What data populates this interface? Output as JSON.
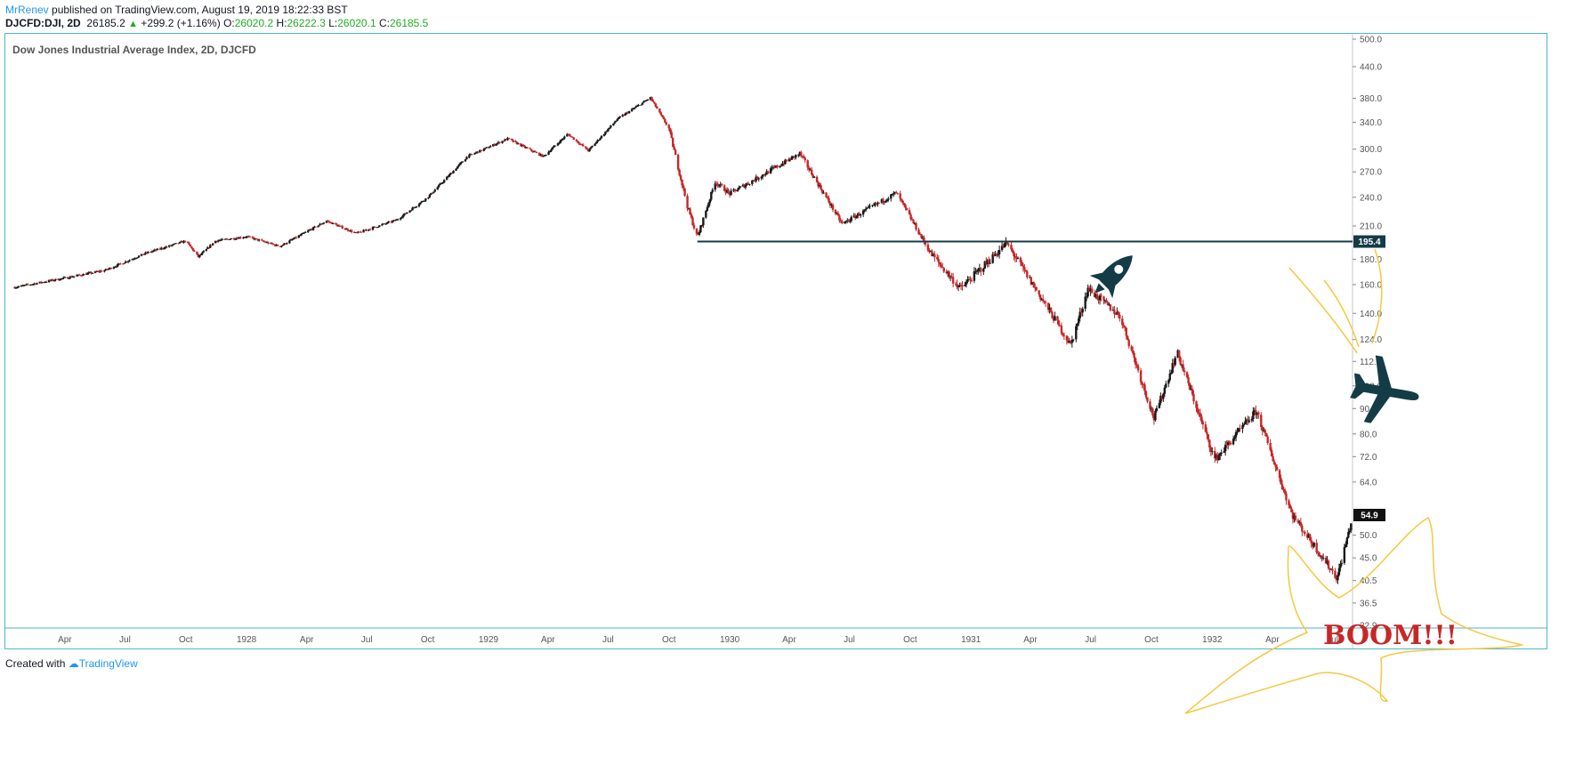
{
  "header": {
    "author": "MrRenev",
    "published_text": "published on TradingView.com, August 19, 2019 18:22:33 BST",
    "symbol": "DJCFD:DJI, 2D",
    "last": "26185.2",
    "change": "+299.2 (+1.16%)",
    "o_label": "O:",
    "o_value": "26020.2",
    "h_label": "H:",
    "h_value": "26222.3",
    "l_label": "L:",
    "l_value": "26020.1",
    "c_label": "C:",
    "c_value": "26185.5"
  },
  "footer": {
    "created_with": "Created with",
    "brand": "TradingView"
  },
  "colors": {
    "up": "#1a1a1a",
    "down": "#c62828",
    "line": "#143c46",
    "frame": "#4db6c9",
    "annotation": "#f5c842",
    "boom": "#c62828",
    "icon": "#143c46"
  },
  "icons": [
    "rocket-icon",
    "airplane-icon"
  ],
  "chart_data": {
    "type": "candlestick",
    "title": "Dow Jones Industrial Average Index, 2D, DJCFD",
    "y_scale": "log",
    "ylim": [
      32.9,
      500
    ],
    "y_ticks": [
      32.9,
      36.5,
      40.5,
      45.0,
      50.0,
      54.9,
      64.0,
      72.0,
      80.0,
      90.0,
      100.0,
      112.0,
      124.0,
      140.0,
      160.0,
      180.0,
      195.4,
      210.0,
      240.0,
      270.0,
      300.0,
      340.0,
      380.0,
      440.0,
      500.0
    ],
    "y_tick_labels": [
      "32.9",
      "36.5",
      "40.5",
      "45.0",
      "50.0",
      "",
      "64.0",
      "72.0",
      "80.0",
      "90.0",
      "100.0",
      "112.0",
      "124.0",
      "140.0",
      "160.0",
      "180.0",
      "",
      "210.0",
      "240.0",
      "270.0",
      "300.0",
      "340.0",
      "380.0",
      "440.0",
      "500.0"
    ],
    "x_labels": [
      "Apr",
      "Jul",
      "Oct",
      "1928",
      "Apr",
      "Jul",
      "Oct",
      "1929",
      "Apr",
      "Jul",
      "Oct",
      "1930",
      "Apr",
      "Jul",
      "Oct",
      "1931",
      "Apr",
      "Jul",
      "Oct",
      "1932",
      "Apr",
      "Jul"
    ],
    "series": [
      {
        "key_points": [
          {
            "date": "1927-01-15",
            "value": 158
          },
          {
            "date": "1927-04-01",
            "value": 165
          },
          {
            "date": "1927-06-01",
            "value": 171
          },
          {
            "date": "1927-08-01",
            "value": 185
          },
          {
            "date": "1927-10-01",
            "value": 196
          },
          {
            "date": "1927-10-20",
            "value": 182
          },
          {
            "date": "1927-11-15",
            "value": 196
          },
          {
            "date": "1928-01-01",
            "value": 200
          },
          {
            "date": "1928-02-20",
            "value": 191
          },
          {
            "date": "1928-05-01",
            "value": 215
          },
          {
            "date": "1928-06-15",
            "value": 203
          },
          {
            "date": "1928-08-15",
            "value": 216
          },
          {
            "date": "1928-10-01",
            "value": 240
          },
          {
            "date": "1928-11-30",
            "value": 290
          },
          {
            "date": "1929-01-30",
            "value": 315
          },
          {
            "date": "1929-03-25",
            "value": 290
          },
          {
            "date": "1929-05-01",
            "value": 322
          },
          {
            "date": "1929-06-01",
            "value": 298
          },
          {
            "date": "1929-07-15",
            "value": 345
          },
          {
            "date": "1929-09-03",
            "value": 381
          },
          {
            "date": "1929-10-01",
            "value": 330
          },
          {
            "date": "1929-10-29",
            "value": 230
          },
          {
            "date": "1929-11-13",
            "value": 199
          },
          {
            "date": "1929-12-10",
            "value": 258
          },
          {
            "date": "1930-01-01",
            "value": 244
          },
          {
            "date": "1930-04-17",
            "value": 294
          },
          {
            "date": "1930-06-20",
            "value": 212
          },
          {
            "date": "1930-09-10",
            "value": 245
          },
          {
            "date": "1930-11-01",
            "value": 185
          },
          {
            "date": "1930-12-16",
            "value": 157
          },
          {
            "date": "1931-02-24",
            "value": 194
          },
          {
            "date": "1931-06-01",
            "value": 121
          },
          {
            "date": "1931-06-27",
            "value": 157
          },
          {
            "date": "1931-08-15",
            "value": 138
          },
          {
            "date": "1931-10-05",
            "value": 86
          },
          {
            "date": "1931-11-09",
            "value": 117
          },
          {
            "date": "1932-01-05",
            "value": 71
          },
          {
            "date": "1932-03-08",
            "value": 89
          },
          {
            "date": "1932-05-01",
            "value": 55
          },
          {
            "date": "1932-07-08",
            "value": 41
          },
          {
            "date": "1932-08-01",
            "value": 54.9
          }
        ]
      }
    ],
    "horizontal_lines": [
      {
        "value": 195.4,
        "label": "195.4",
        "from_date": "1929-11-13"
      }
    ],
    "price_markers": [
      {
        "value": 54.9,
        "label": "54.9"
      }
    ],
    "annotations": [
      {
        "text": "BOOM!!!"
      }
    ]
  }
}
